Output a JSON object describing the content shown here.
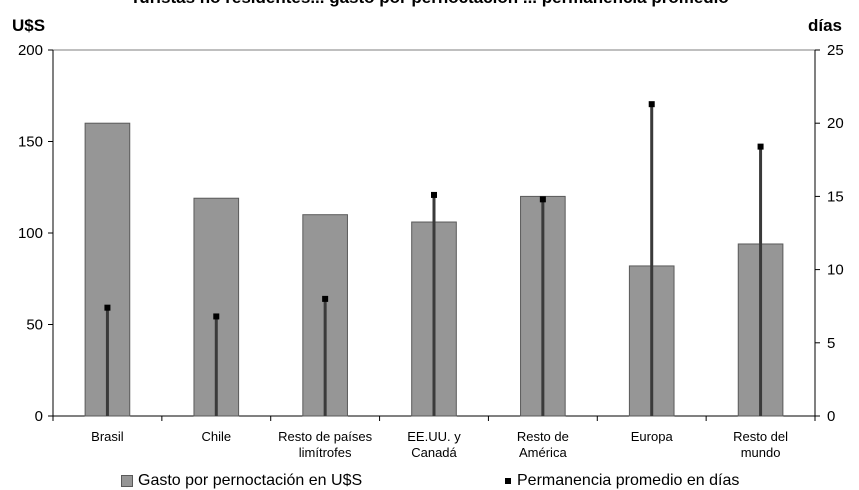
{
  "title": "Turistas no residentes... gasto por pernoctación ... permanencia promedio",
  "left_unit": "U$S",
  "right_unit": "días",
  "chart_data": {
    "type": "bar",
    "categories": [
      [
        "Brasil"
      ],
      [
        "Chile"
      ],
      [
        "Resto de países",
        "limítrofes"
      ],
      [
        "EE.UU. y",
        "Canadá"
      ],
      [
        "Resto de",
        "América"
      ],
      [
        "Europa"
      ],
      [
        "Resto del",
        "mundo"
      ]
    ],
    "series": [
      {
        "name": "Gasto por pernoctación en U$S",
        "axis": "left",
        "render": "bar",
        "color": "#969696",
        "values": [
          160,
          119,
          110,
          106,
          120,
          82,
          94
        ]
      },
      {
        "name": "Permanencia promedio en días",
        "axis": "right",
        "render": "drop-line-marker",
        "color": "#000000",
        "values": [
          7.4,
          6.8,
          8.0,
          15.1,
          14.8,
          21.3,
          18.4
        ]
      }
    ],
    "y_left": {
      "min": 0,
      "max": 200,
      "ticks": [
        0,
        50,
        100,
        150,
        200
      ]
    },
    "y_right": {
      "min": 0,
      "max": 25,
      "ticks": [
        0,
        5,
        10,
        15,
        20,
        25
      ]
    },
    "grid": false,
    "legend_position": "bottom"
  }
}
